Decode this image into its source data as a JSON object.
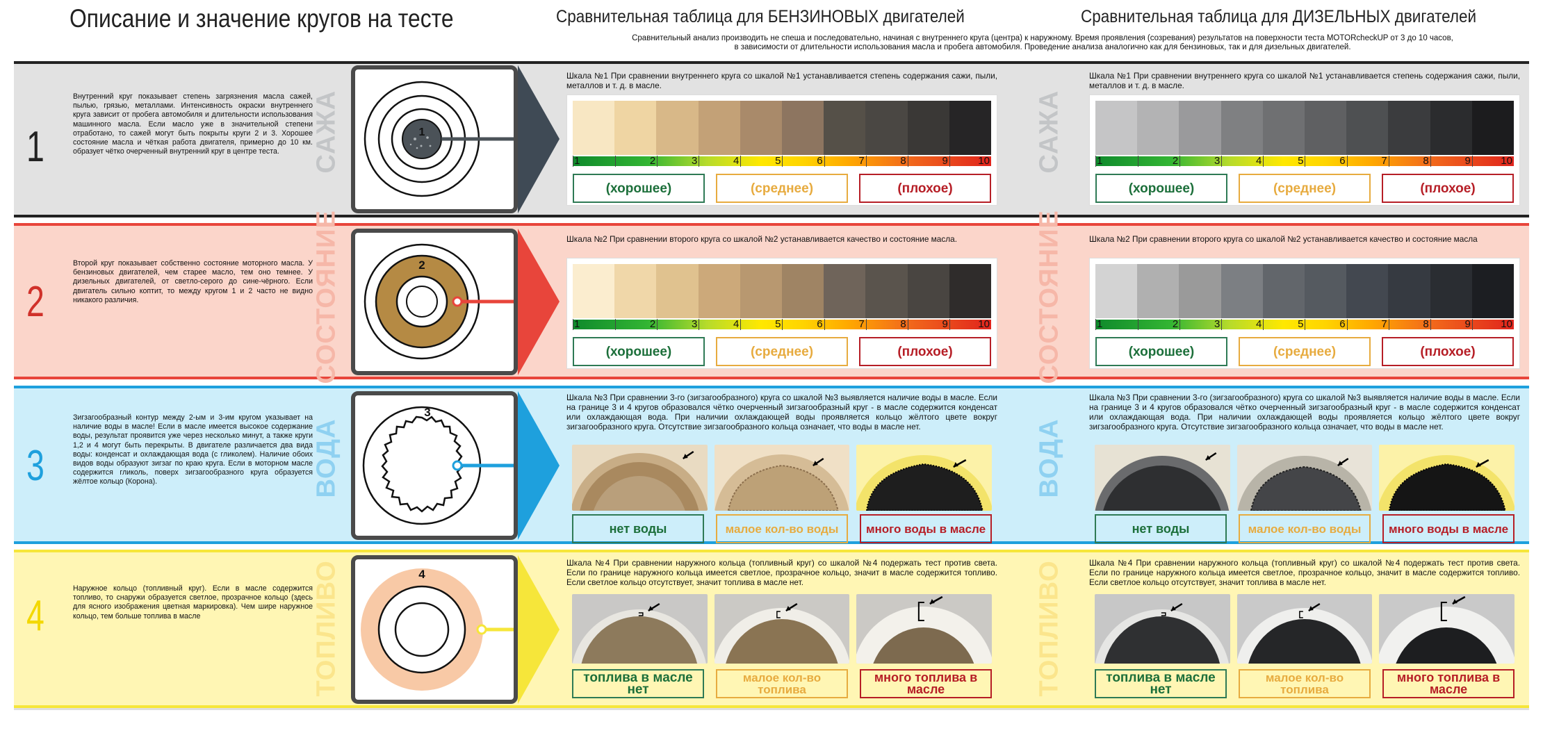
{
  "header": {
    "title_main": "Описание и значение кругов на тесте",
    "title_petrol": "Сравнительная таблица для  БЕНЗИНОВЫХ двигателей",
    "title_diesel": "Сравнительная таблица для  ДИЗЕЛЬНЫХ двигателей",
    "subtitle_1": "Сравнительный анализ производить не спеша и последовательно, начиная с внутреннего круга (центра) к наружному. Время проявления (созревания) результатов на поверхности теста MOTORcheckUP от 3 до 10 часов,",
    "subtitle_2": "в зависимости от длительности использования масла и пробега автомобиля. Проведение анализа аналогично как для бензиновых, так и для дизельных двигателей."
  },
  "colors": {
    "row1_bg": "#e2e2e2",
    "row1_accent": "#3f4a55",
    "row2_bg": "#fbd5ca",
    "row2_accent": "#e8453b",
    "row3_bg": "#cdeefa",
    "row3_accent": "#1ea0dd",
    "row4_bg": "#fff6b4",
    "row4_accent": "#f6e63a"
  },
  "rows": [
    {
      "number": "1",
      "vertical_label": "САЖА",
      "circle_label": "1",
      "description": "Внутренний круг показывает степень загрязнения масла сажей, пылью, грязью, металлами. Интенсивность окраски внутреннего круга зависит от пробега автомобиля и длительности использования машинного масла. Если масло уже в значительной степени отработано, то сажей могут быть покрыты круги 2 и 3. Хорошее состояние масла и чёткая работа двигателя, примерно до 10 км. образует чётко очерченный внутренний круг в центре теста.",
      "petrol_text": "Шкала №1 При сравнении внутреннего круга со шкалой №1 устанавливается степень содержания сажи, пыли, металлов и т. д. в масле.",
      "diesel_text": "Шкала №1 При сравнении внутреннего круга со шкалой №1 устанавливается степень содержания сажи, пыли, металлов и т. д. в масле."
    },
    {
      "number": "2",
      "vertical_label": "СОСТОЯНИЕ",
      "circle_label": "2",
      "description": "Второй круг показывает собственно состояние моторного масла. У бензиновых двигателей, чем старее масло, тем оно темнее. У дизельных двигателей, от светло-серого до сине-чёрного. Если двигатель сильно коптит, то между кругом 1 и 2 часто не видно никакого различия.",
      "petrol_text": "Шкала №2 При сравнении второго круга со шкалой №2 устанавливается качество и состояние масла.",
      "diesel_text": "Шкала №2 При сравнении второго круга со шкалой №2 устанавливается качество и состояние масла"
    },
    {
      "number": "3",
      "vertical_label": "ВОДА",
      "circle_label": "3",
      "description": "Зигзагообразный контур между 2-ым и 3-им кругом указывает на наличие воды в масле! Если в масле имеется высокое содержание воды, результат проявится уже через несколько минут, а также круги 1,2 и 4 могут быть перекрыты. В двигателе различается два вида воды: конденсат и охлаждающая вода (с гликолем). Наличие обоих видов воды образуют зигзаг по краю круга. Если в моторном масле содержится гликоль, поверх зигзагообразного круга образуется жёлтое кольцо (Корона).",
      "petrol_text": "Шкала №3 При сравнении 3-го (зигзагообразного) круга со шкалой №3 выявляется наличие воды в масле. Если на границе 3 и 4 кругов образовался чётко очерченный зигзагообразный круг - в масле содержится конденсат или охлаждающая вода. При наличии охлаждающей воды проявляется кольцо жёлтого цвете вокруг зигзагообразного круга. Отсутствие зигзагообразного кольца означает, что воды в масле нет.",
      "diesel_text": "Шкала №3 При сравнении 3-го (зигзагообразного) круга со шкалой №3 выявляется наличие воды в масле. Если на границе 3 и 4 кругов образовался чётко очерченный зигзагообразный круг - в масле содержится конденсат или охлаждающая вода. При наличии охлаждающей воды проявляется кольцо жёлтого цвете вокруг зигзагообразного круга. Отсутствие зигзагообразного кольца означает, что воды в масле нет.",
      "labels": [
        "нет воды",
        "малое кол-во воды",
        "много воды в масле"
      ]
    },
    {
      "number": "4",
      "vertical_label": "ТОПЛИВО",
      "circle_label": "4",
      "description": "Наружное кольцо (топливный круг). Если в масле содержится топливо, то снаружи образуется светлое, прозрачное кольцо (здесь для ясного изображения цветная маркировка). Чем шире наружное кольцо, тем больше топлива в масле",
      "petrol_text": "Шкала №4  При сравнении наружного кольца (топливный круг) со шкалой №4 подержать тест против света. Если по границе наружного кольца имеется светлое, прозрачное кольцо, значит в масле содержится топливо. Если светлое кольцо отсутствует, значит топлива в масле нет.",
      "diesel_text": "Шкала №4  При сравнении наружного кольца (топливный круг) со шкалой №4 подержать тест против света. Если по границе наружного кольца имеется светлое, прозрачное кольцо, значит в масле содержится топливо. Если светлое кольцо отсутствует, значит топлива в масле нет.",
      "labels": [
        "топлива в масле нет",
        "малое кол-во топлива",
        "много топлива в масле"
      ]
    }
  ],
  "scale": {
    "ticks": [
      "1",
      "2",
      "3",
      "4",
      "5",
      "6",
      "7",
      "8",
      "9",
      "10"
    ],
    "good": "(хорошее)",
    "mid": "(среднее)",
    "bad": "(плохое)"
  },
  "swatches": {
    "petrol_1": [
      "#f8e7c3",
      "#efd5a3",
      "#d8b888",
      "#c3a177",
      "#a98a6a",
      "#8d7560",
      "#555048",
      "#4a4743",
      "#3a3836",
      "#262526"
    ],
    "diesel_1": [
      "#c5c5c6",
      "#b3b3b4",
      "#9a9a9c",
      "#7f8082",
      "#6f7072",
      "#5f6062",
      "#4e5052",
      "#3b3c3e",
      "#2b2c2e",
      "#1c1c1e"
    ],
    "petrol_2": [
      "#fbedcf",
      "#f0d7a9",
      "#e0c28f",
      "#cca97a",
      "#b89870",
      "#9f8464",
      "#6f645a",
      "#5a544d",
      "#494541",
      "#2f2c2b"
    ],
    "diesel_2": [
      "#d3d3d3",
      "#b0b0b0",
      "#9a9a9a",
      "#7c7f83",
      "#62666b",
      "#555a60",
      "#434850",
      "#363a41",
      "#2a2d32",
      "#1c1e22"
    ]
  }
}
